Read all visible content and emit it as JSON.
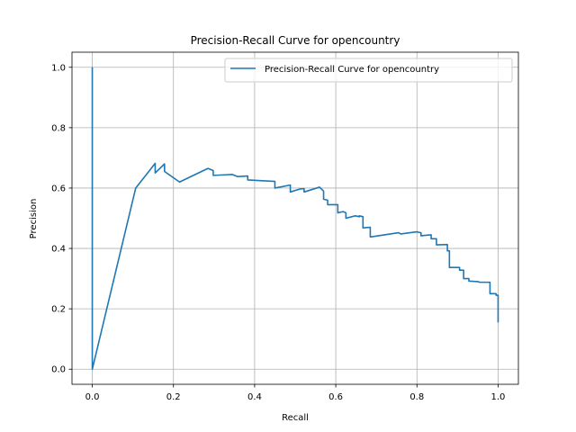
{
  "chart_data": {
    "type": "line",
    "title": "Precision-Recall Curve for opencountry",
    "xlabel": "Recall",
    "ylabel": "Precision",
    "xlim": [
      -0.05,
      1.05
    ],
    "ylim": [
      -0.05,
      1.05
    ],
    "xticks": [
      0.0,
      0.2,
      0.4,
      0.6,
      0.8,
      1.0
    ],
    "yticks": [
      0.0,
      0.2,
      0.4,
      0.6,
      0.8,
      1.0
    ],
    "xtick_labels": [
      "0.0",
      "0.2",
      "0.4",
      "0.6",
      "0.8",
      "1.0"
    ],
    "ytick_labels": [
      "0.0",
      "0.2",
      "0.4",
      "0.6",
      "0.8",
      "1.0"
    ],
    "grid": true,
    "legend_position": "upper right",
    "series": [
      {
        "name": "Precision-Recall Curve for opencountry",
        "color": "#1f77b4",
        "points": [
          [
            0.0,
            1.0
          ],
          [
            0.0,
            0.0
          ],
          [
            0.107,
            0.6
          ],
          [
            0.155,
            0.682
          ],
          [
            0.155,
            0.65
          ],
          [
            0.178,
            0.68
          ],
          [
            0.178,
            0.655
          ],
          [
            0.215,
            0.62
          ],
          [
            0.285,
            0.665
          ],
          [
            0.298,
            0.658
          ],
          [
            0.298,
            0.642
          ],
          [
            0.345,
            0.645
          ],
          [
            0.358,
            0.638
          ],
          [
            0.383,
            0.64
          ],
          [
            0.383,
            0.627
          ],
          [
            0.45,
            0.622
          ],
          [
            0.45,
            0.6
          ],
          [
            0.488,
            0.61
          ],
          [
            0.488,
            0.587
          ],
          [
            0.512,
            0.597
          ],
          [
            0.522,
            0.598
          ],
          [
            0.522,
            0.587
          ],
          [
            0.56,
            0.603
          ],
          [
            0.57,
            0.59
          ],
          [
            0.57,
            0.563
          ],
          [
            0.58,
            0.56
          ],
          [
            0.58,
            0.545
          ],
          [
            0.605,
            0.545
          ],
          [
            0.605,
            0.518
          ],
          [
            0.618,
            0.522
          ],
          [
            0.625,
            0.518
          ],
          [
            0.625,
            0.5
          ],
          [
            0.648,
            0.508
          ],
          [
            0.658,
            0.505
          ],
          [
            0.658,
            0.508
          ],
          [
            0.667,
            0.505
          ],
          [
            0.667,
            0.468
          ],
          [
            0.685,
            0.47
          ],
          [
            0.685,
            0.438
          ],
          [
            0.755,
            0.452
          ],
          [
            0.76,
            0.448
          ],
          [
            0.8,
            0.455
          ],
          [
            0.81,
            0.452
          ],
          [
            0.81,
            0.442
          ],
          [
            0.835,
            0.445
          ],
          [
            0.835,
            0.432
          ],
          [
            0.848,
            0.432
          ],
          [
            0.848,
            0.412
          ],
          [
            0.875,
            0.413
          ],
          [
            0.875,
            0.392
          ],
          [
            0.88,
            0.392
          ],
          [
            0.88,
            0.337
          ],
          [
            0.905,
            0.337
          ],
          [
            0.905,
            0.328
          ],
          [
            0.915,
            0.328
          ],
          [
            0.915,
            0.3
          ],
          [
            0.928,
            0.3
          ],
          [
            0.928,
            0.292
          ],
          [
            0.95,
            0.29
          ],
          [
            0.955,
            0.288
          ],
          [
            0.98,
            0.288
          ],
          [
            0.98,
            0.25
          ],
          [
            0.995,
            0.25
          ],
          [
            0.995,
            0.245
          ],
          [
            1.0,
            0.245
          ],
          [
            1.0,
            0.155
          ]
        ]
      }
    ]
  }
}
